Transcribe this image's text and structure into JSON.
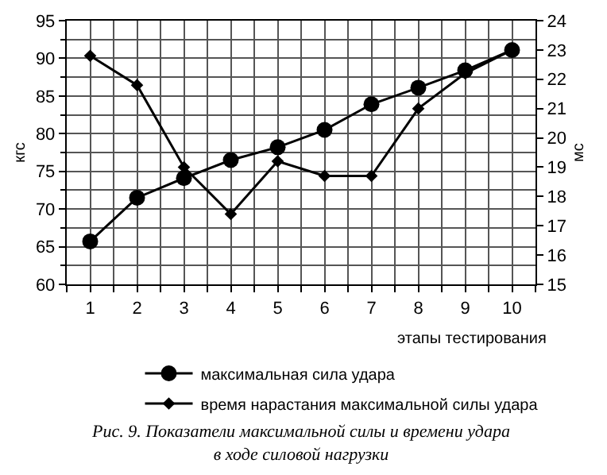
{
  "chart_data": {
    "type": "line",
    "title": "Рис. 9. Показатели максимальной силы и времени удара\nв ходе силовой нагрузки",
    "xlabel": "этапы тестирования",
    "ylabel": "кгс",
    "y2label": "мс",
    "x": [
      1,
      2,
      3,
      4,
      5,
      6,
      7,
      8,
      9,
      10
    ],
    "xlim": [
      0.5,
      10.5
    ],
    "xticks": [
      1,
      2,
      3,
      4,
      5,
      6,
      7,
      8,
      9,
      10
    ],
    "ylim": [
      60,
      95
    ],
    "yticks": [
      60,
      65,
      70,
      75,
      80,
      85,
      90,
      95
    ],
    "y2lim": [
      15,
      24
    ],
    "y2ticks": [
      15,
      16,
      17,
      18,
      19,
      20,
      21,
      22,
      23,
      24
    ],
    "grid": true,
    "legend": "bottom",
    "line_style": "solid",
    "series": [
      {
        "name": "максимальная сила удара",
        "color": "#000000",
        "marker": "circle",
        "values": [
          65.7,
          71.5,
          74.1,
          76.5,
          78.2,
          80.5,
          83.9,
          86.1,
          88.4,
          91.1
        ]
      },
      {
        "name": "время нарастания максимальной силы удара",
        "color": "#000000",
        "marker": "diamond",
        "axis": "y2",
        "values": [
          22.8,
          21.8,
          19.0,
          17.4,
          19.2,
          18.7,
          18.7,
          21.0,
          22.2,
          23.0
        ]
      }
    ]
  }
}
